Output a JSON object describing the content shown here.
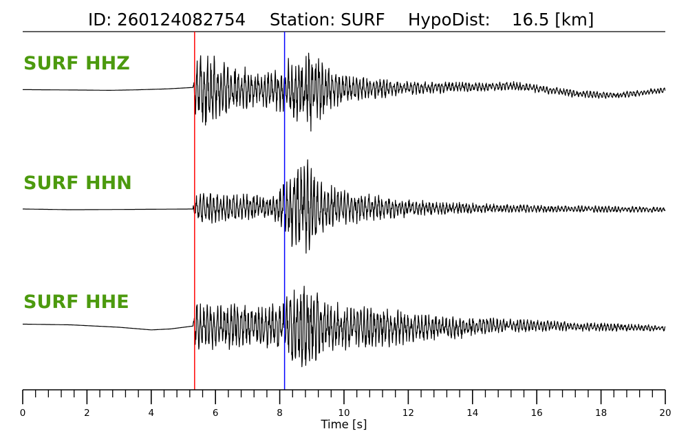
{
  "header": {
    "id_text": "ID: 260124082754",
    "station_text": "Station: SURF",
    "dist_text": "HypoDist:    16.5 [km]"
  },
  "chart_data": {
    "type": "line",
    "title": "ID: 260124082754   Station: SURF   HypoDist:    16.5 [km]",
    "xlabel": "Time [s]",
    "xlim": [
      0,
      20
    ],
    "x_major_ticks": [
      0,
      2,
      4,
      6,
      8,
      10,
      12,
      14,
      16,
      18,
      20
    ],
    "x_minor_step": 0.4,
    "picks": [
      {
        "phase": "P",
        "time": 5.35,
        "color": "#ff0000"
      },
      {
        "phase": "S",
        "time": 8.15,
        "color": "#0000ff"
      }
    ],
    "series": [
      {
        "name": "SURF HHZ",
        "onset": 5.35,
        "envelope": [
          [
            0,
            0.0
          ],
          [
            5.3,
            0.0
          ],
          [
            5.35,
            0.55
          ],
          [
            5.7,
            0.85
          ],
          [
            6.3,
            0.6
          ],
          [
            7.0,
            0.45
          ],
          [
            7.6,
            0.4
          ],
          [
            8.1,
            0.5
          ],
          [
            8.5,
            0.85
          ],
          [
            8.95,
            1.0
          ],
          [
            9.5,
            0.5
          ],
          [
            10.0,
            0.32
          ],
          [
            11.0,
            0.22
          ],
          [
            12.0,
            0.16
          ],
          [
            13.0,
            0.13
          ],
          [
            14.5,
            0.1
          ],
          [
            16.0,
            0.09
          ],
          [
            20.0,
            0.06
          ]
        ],
        "baseline": [
          [
            0,
            -0.01
          ],
          [
            2.0,
            -0.03
          ],
          [
            2.7,
            -0.04
          ],
          [
            3.5,
            -0.02
          ],
          [
            4.5,
            0.02
          ],
          [
            5.3,
            0.08
          ],
          [
            5.5,
            0.02
          ],
          [
            8.0,
            0.0
          ],
          [
            10.0,
            0.03
          ],
          [
            12.0,
            0.06
          ],
          [
            14.0,
            0.1
          ],
          [
            15.3,
            0.14
          ],
          [
            16.2,
            0.0
          ],
          [
            17.2,
            -0.18
          ],
          [
            18.4,
            -0.26
          ],
          [
            19.2,
            -0.15
          ],
          [
            20.0,
            -0.02
          ]
        ]
      },
      {
        "name": "SURF HHN",
        "onset": 5.35,
        "envelope": [
          [
            0,
            0.0
          ],
          [
            5.3,
            0.0
          ],
          [
            5.35,
            0.3
          ],
          [
            5.8,
            0.3
          ],
          [
            7.0,
            0.25
          ],
          [
            7.8,
            0.25
          ],
          [
            8.2,
            0.55
          ],
          [
            8.6,
            0.95
          ],
          [
            8.9,
            0.9
          ],
          [
            9.4,
            0.45
          ],
          [
            10.3,
            0.32
          ],
          [
            11.5,
            0.2
          ],
          [
            13.0,
            0.12
          ],
          [
            15.0,
            0.08
          ],
          [
            20.0,
            0.05
          ]
        ],
        "baseline": [
          [
            0,
            0.0
          ],
          [
            1.5,
            -0.03
          ],
          [
            3.0,
            -0.02
          ],
          [
            5.3,
            0.0
          ],
          [
            6.0,
            0.05
          ],
          [
            7.5,
            0.08
          ],
          [
            9.0,
            0.02
          ],
          [
            10.5,
            0.06
          ],
          [
            12.0,
            0.04
          ],
          [
            14.0,
            0.03
          ],
          [
            17.0,
            0.0
          ],
          [
            20.0,
            -0.03
          ]
        ]
      },
      {
        "name": "SURF HHE",
        "onset": 5.35,
        "envelope": [
          [
            0,
            0.0
          ],
          [
            5.3,
            0.0
          ],
          [
            5.35,
            0.5
          ],
          [
            5.8,
            0.55
          ],
          [
            6.5,
            0.5
          ],
          [
            7.5,
            0.45
          ],
          [
            8.1,
            0.55
          ],
          [
            8.6,
            1.0
          ],
          [
            9.0,
            0.9
          ],
          [
            9.5,
            0.55
          ],
          [
            10.5,
            0.45
          ],
          [
            11.0,
            0.45
          ],
          [
            12.5,
            0.3
          ],
          [
            13.5,
            0.25
          ],
          [
            15.0,
            0.15
          ],
          [
            17.0,
            0.1
          ],
          [
            20.0,
            0.07
          ]
        ],
        "baseline": [
          [
            0,
            0.13
          ],
          [
            1.5,
            0.1
          ],
          [
            3.0,
            0.0
          ],
          [
            4.0,
            -0.11
          ],
          [
            4.6,
            -0.07
          ],
          [
            5.3,
            0.05
          ],
          [
            6.0,
            0.05
          ],
          [
            8.0,
            0.02
          ],
          [
            10.0,
            0.0
          ],
          [
            12.0,
            -0.02
          ],
          [
            13.5,
            -0.02
          ],
          [
            14.5,
            0.08
          ],
          [
            16.0,
            0.06
          ],
          [
            18.0,
            0.0
          ],
          [
            20.0,
            -0.04
          ]
        ]
      }
    ]
  }
}
